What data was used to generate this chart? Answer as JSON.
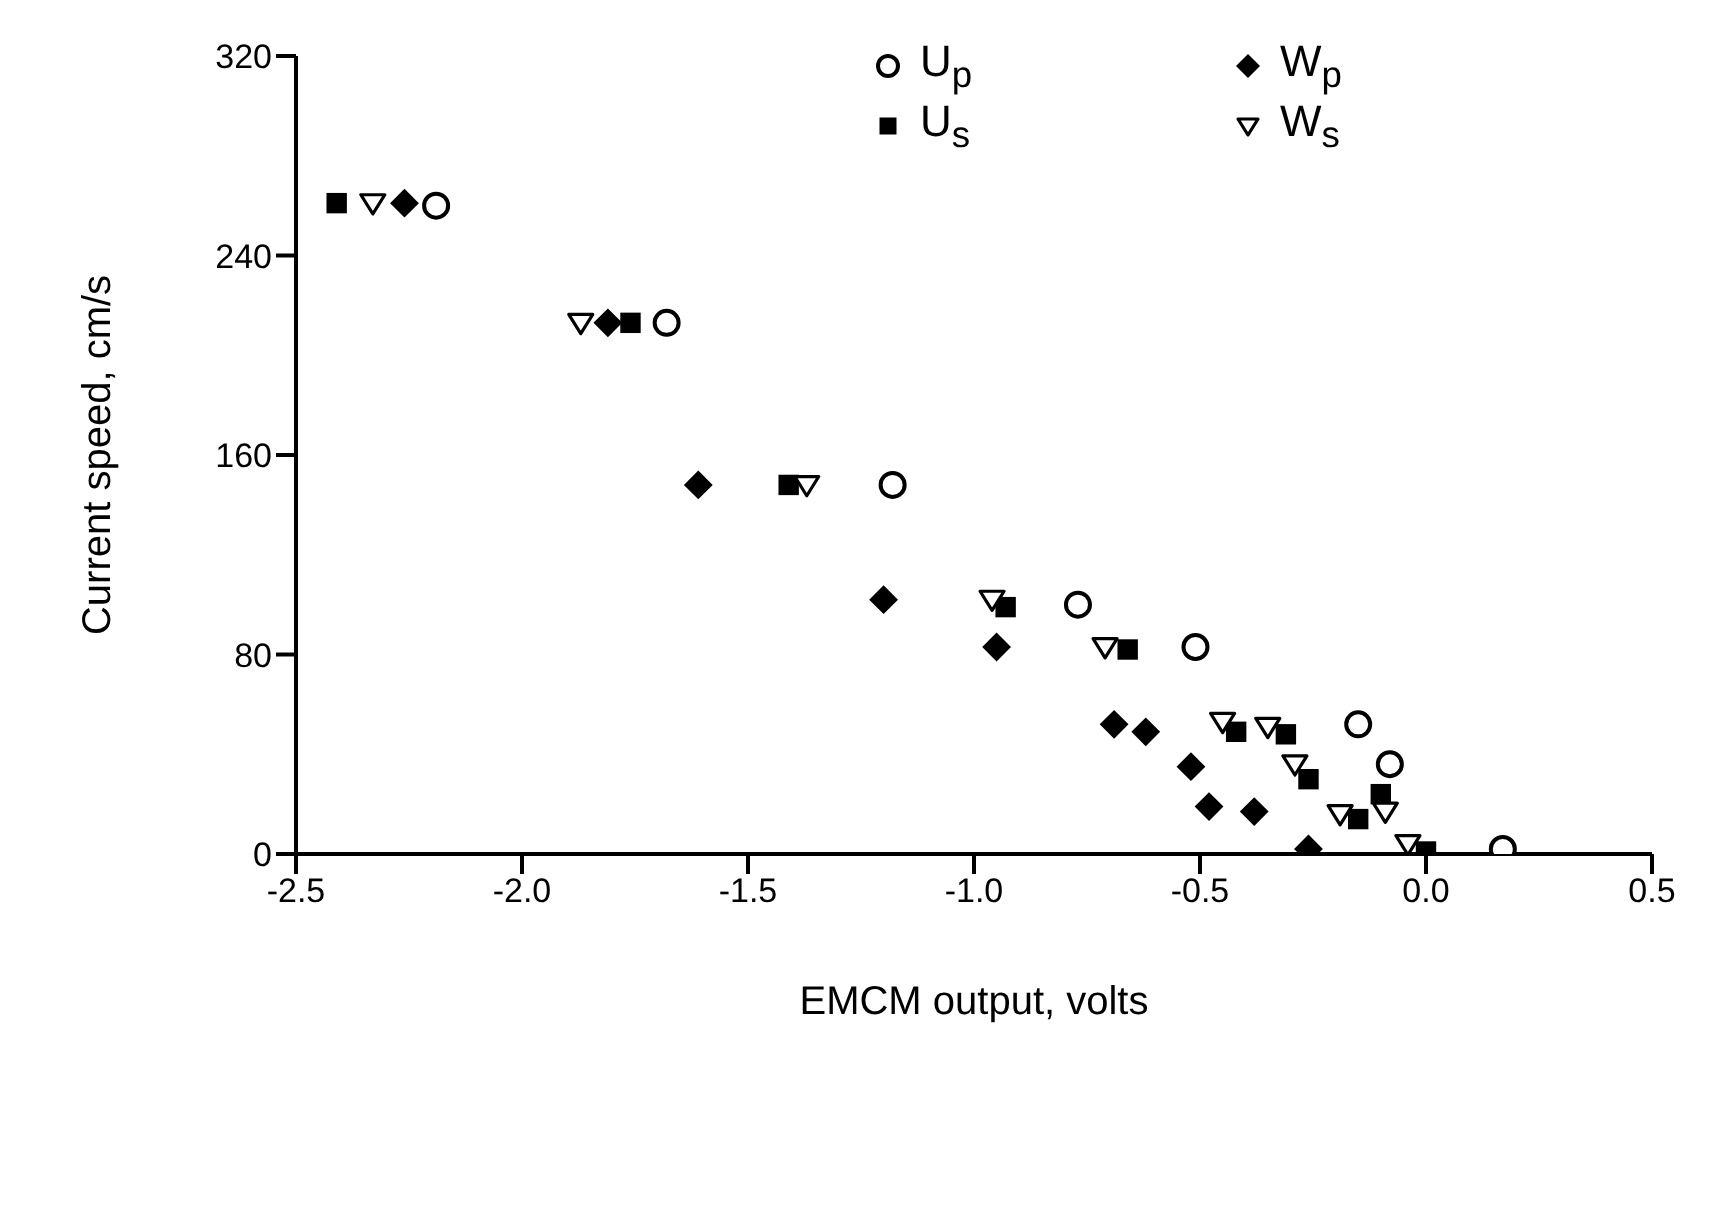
{
  "chart_data": {
    "type": "scatter",
    "xlabel": "EMCM output, volts",
    "ylabel": "Current speed, cm/s",
    "xlim": [
      -2.5,
      0.5
    ],
    "xticks": [
      -2.5,
      {
        "value": -2,
        "label": "-2.0"
      },
      -1.5,
      {
        "value": -1,
        "label": "-1.0"
      },
      -0.5,
      {
        "value": 0,
        "label": "0.0"
      },
      0.5
    ],
    "ylim": [
      0,
      320
    ],
    "yticks": [
      0,
      80,
      160,
      240,
      320
    ],
    "grid": false,
    "legend": "top right",
    "series": [
      {
        "name": "U$_{p}$",
        "color": "#000000",
        "marker": "circle",
        "x": [
          -2.19,
          -1.68,
          -1.18,
          -0.77,
          -0.51,
          -0.15,
          -0.08,
          0.17
        ],
        "values": [
          260,
          213,
          148,
          100,
          83,
          52,
          36,
          2
        ]
      },
      {
        "name": "U$_{s}$",
        "color": "#000000",
        "marker": "square",
        "x": [
          -2.41,
          -1.76,
          -1.41,
          -0.93,
          -0.66,
          -0.42,
          -0.31,
          -0.26,
          -0.15,
          -0.1,
          0.0
        ],
        "values": [
          261,
          213,
          148,
          99,
          82,
          49,
          48,
          30,
          14,
          24,
          1
        ]
      },
      {
        "name": "W$_{p}$",
        "color": "#000000",
        "marker": "diamond",
        "x": [
          -2.26,
          -1.81,
          -1.61,
          -1.2,
          -0.95,
          -0.69,
          -0.62,
          -0.52,
          -0.48,
          -0.38,
          -0.26
        ],
        "values": [
          261,
          213,
          148,
          102,
          83,
          52,
          49,
          35,
          19,
          17,
          2
        ]
      },
      {
        "name": "W$_{s}$",
        "color": "#000000",
        "marker": "triangle",
        "x": [
          -2.33,
          -1.87,
          -1.37,
          -0.96,
          -0.71,
          -0.45,
          -0.35,
          -0.29,
          -0.19,
          -0.09,
          -0.04
        ],
        "values": [
          261,
          213,
          148,
          102,
          83,
          53,
          51,
          36,
          16,
          17,
          4
        ]
      }
    ]
  }
}
